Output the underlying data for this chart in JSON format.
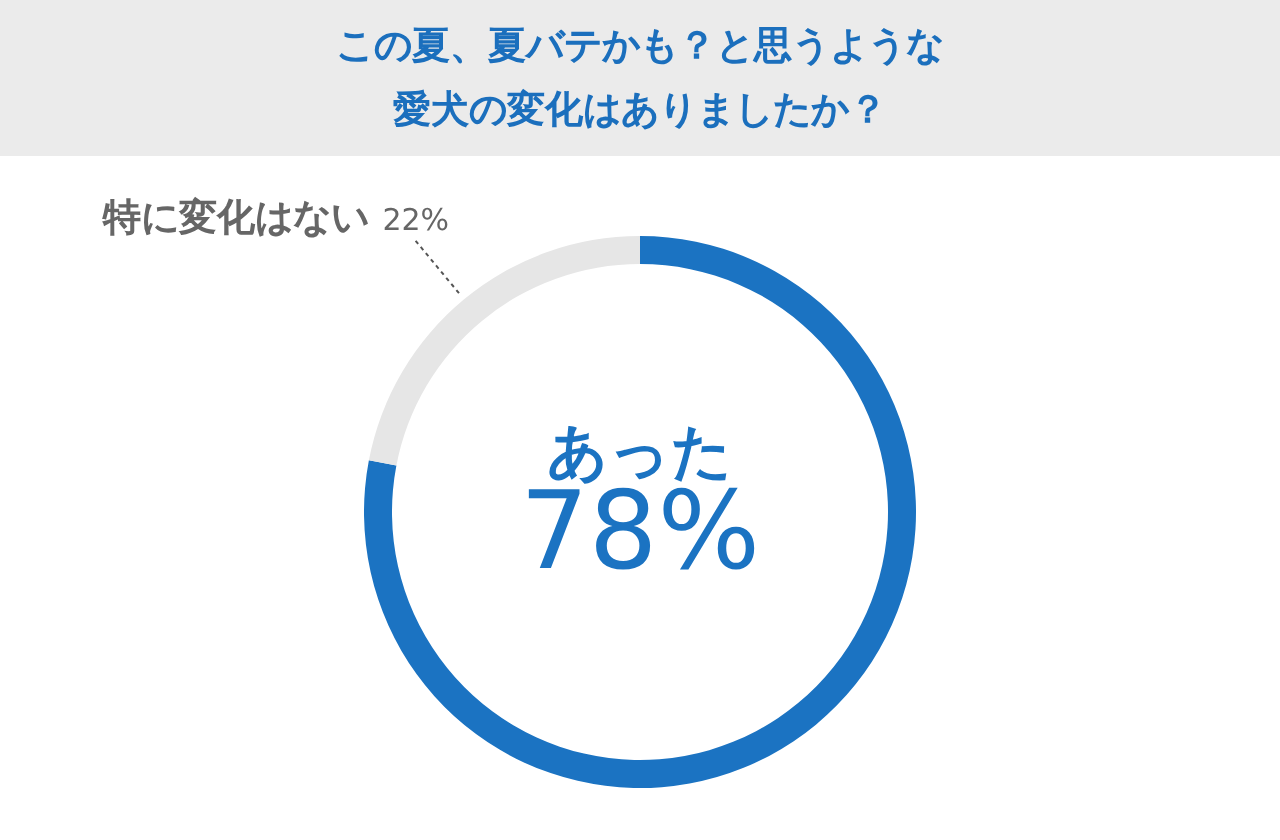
{
  "chart_data": {
    "type": "donut",
    "title": "この夏、夏バテかも？と思うような愛犬の変化はありましたか？",
    "categories": [
      "あった",
      "特に変化はない"
    ],
    "values": [
      78,
      22
    ],
    "value_labels": [
      "78%",
      "22%"
    ],
    "colors": [
      "#1b73c2",
      "#e6e6e6"
    ]
  }
}
